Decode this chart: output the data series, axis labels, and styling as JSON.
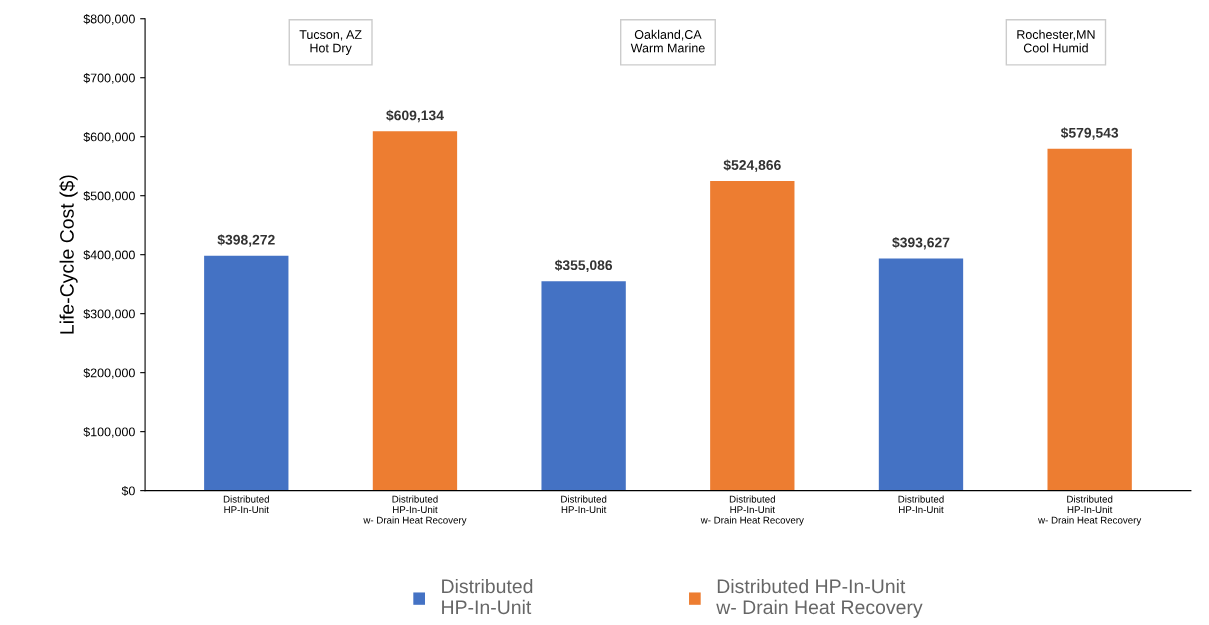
{
  "chart_data": {
    "type": "bar",
    "ylabel": "Life-Cycle Cost ($)",
    "categories": [
      "Distributed\nHP-In-Unit",
      "Distributed\nHP-In-Unit\nw- Drain Heat Recovery",
      "Distributed\nHP-In-Unit",
      "Distributed\nHP-In-Unit\nw- Drain Heat Recovery",
      "Distributed\nHP-In-Unit",
      "Distributed\nHP-In-Unit\nw- Drain Heat Recovery"
    ],
    "series": [
      {
        "name": "Distributed\nHP-In-Unit",
        "color": "#4472c4",
        "values": [
          398272,
          null,
          355086,
          null,
          393627,
          null
        ]
      },
      {
        "name": "Distributed HP-In-Unit\nw- Drain Heat Recovery",
        "color": "#ed7d31",
        "values": [
          null,
          609134,
          null,
          524866,
          null,
          579543
        ]
      }
    ],
    "value_labels": [
      "$398,272",
      "$609,134",
      "$355,086",
      "$524,866",
      "$393,627",
      "$579,543"
    ],
    "ylim": [
      0,
      800000
    ],
    "yticks": [
      {
        "value": 0,
        "label": "$0"
      },
      {
        "value": 100000,
        "label": "$100,000"
      },
      {
        "value": 200000,
        "label": "$200,000"
      },
      {
        "value": 300000,
        "label": "$300,000"
      },
      {
        "value": 400000,
        "label": "$400,000"
      },
      {
        "value": 500000,
        "label": "$500,000"
      },
      {
        "value": 600000,
        "label": "$600,000"
      },
      {
        "value": 700000,
        "label": "$700,000"
      },
      {
        "value": 800000,
        "label": "$800,000"
      }
    ],
    "annotations": [
      "Tucson, AZ\nHot Dry",
      "Oakland,CA\nWarm Marine",
      "Rochester,MN\nCool Humid"
    ],
    "legend": "bottom",
    "grid": false
  }
}
